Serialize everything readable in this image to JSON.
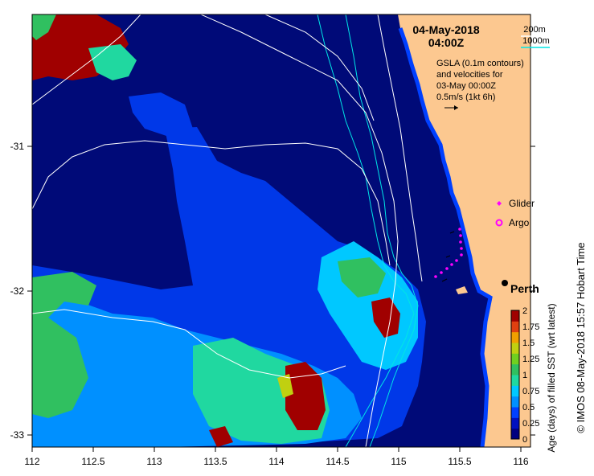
{
  "header": {
    "date": "04-May-2018",
    "time": "04:00Z"
  },
  "contour_legend": {
    "c200": "200m",
    "c1000": "1000m",
    "c200_color": "#ffffff",
    "c1000_color": "#00e5e5"
  },
  "gsla": {
    "line1": "GSLA (0.1m contours)",
    "line2": "and velocities for",
    "line3": "03-May 00:00Z",
    "line4": "0.5m/s (1kt 6h)"
  },
  "markers": {
    "glider": "Glider",
    "argo": "Argo",
    "marker_color": "#ff00ff"
  },
  "city": "Perth",
  "axes": {
    "x_ticks": [
      "112",
      "112.5",
      "113",
      "113.5",
      "114",
      "114.5",
      "115",
      "115.5",
      "116"
    ],
    "y_ticks": [
      "-31",
      "-32",
      "-33"
    ]
  },
  "colorbar": {
    "label": "Age (days) of filled SST (wrt latest)",
    "ticks": [
      "2",
      "1.75",
      "1.5",
      "1.25",
      "1",
      "0.75",
      "0.5",
      "0.25",
      "0"
    ],
    "colors": [
      "#000080",
      "#0010c0",
      "#0040ff",
      "#0090ff",
      "#00c8ff",
      "#20d8a0",
      "#30c060",
      "#70d020",
      "#c0d010",
      "#f0a000",
      "#e04010",
      "#a00000"
    ]
  },
  "credit": "© IMOS 08-May-2018 15:57 Hobart Time",
  "colors": {
    "ocean": "#000a78",
    "land": "#fcc890"
  }
}
